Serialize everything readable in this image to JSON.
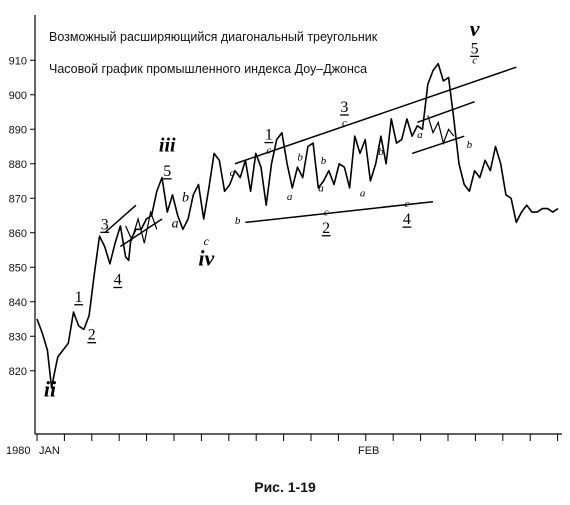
{
  "chart_data": {
    "type": "line",
    "title": "Возможный расширяющийся диагональный треугольник",
    "subtitle": "Часовой график промышленного индекса Доу–Джонса",
    "caption": "Рис. 1-19",
    "year_label": "1980",
    "x_tick_labels": [
      "JAN",
      "FEB"
    ],
    "y_ticks": [
      820,
      830,
      840,
      850,
      860,
      870,
      880,
      890,
      900,
      910
    ],
    "ylim": [
      808,
      915
    ],
    "xlim": [
      0,
      100
    ],
    "grid": false,
    "series": [
      {
        "x": [
          0,
          1,
          2,
          2.8,
          3.3,
          4,
          5,
          6,
          7,
          8,
          9,
          10,
          11,
          12,
          13,
          14,
          15,
          16,
          17,
          17.6,
          18,
          19,
          20,
          21,
          22,
          23,
          24,
          25,
          26,
          27,
          28,
          29,
          30,
          31,
          32,
          33,
          34,
          35,
          36,
          37,
          38,
          39,
          40,
          41,
          42,
          43,
          44,
          45,
          46,
          47,
          48,
          49,
          50,
          51,
          52,
          53,
          54,
          55,
          56,
          57,
          58,
          59,
          60,
          61,
          62,
          63,
          64,
          65,
          66,
          67,
          68,
          69,
          70,
          71,
          72,
          73,
          74,
          75,
          76,
          77,
          78,
          79,
          80,
          81,
          82,
          83,
          84,
          85,
          86,
          87,
          88,
          89,
          90,
          91,
          92,
          93,
          94,
          95,
          96,
          97,
          98,
          99,
          100
        ],
        "values": [
          835,
          831,
          826,
          815,
          819,
          824,
          826,
          828,
          837,
          833,
          832,
          836,
          848,
          859,
          856,
          851,
          857,
          862,
          853,
          852,
          858,
          861,
          861,
          864,
          865,
          872,
          876,
          866,
          871,
          865,
          861,
          864,
          871,
          874,
          864,
          873,
          883,
          881,
          872,
          874,
          878,
          876,
          881,
          872,
          883,
          879,
          868,
          880,
          887,
          889,
          880,
          873,
          879,
          876,
          885,
          886,
          873,
          875,
          878,
          874,
          880,
          879,
          873,
          888,
          883,
          887,
          875,
          880,
          888,
          880,
          893,
          886,
          887,
          893,
          888,
          891,
          890,
          903,
          907,
          909,
          904,
          905,
          893,
          880,
          874,
          872,
          878,
          876,
          881,
          878,
          885,
          880,
          871,
          870,
          863,
          866,
          868,
          866,
          866,
          867,
          867,
          866,
          867
        ],
        "color": "#000000"
      }
    ],
    "trendlines": [
      {
        "x1": 13,
        "y1": 860,
        "x2": 19,
        "y2": 868
      },
      {
        "x1": 16,
        "y1": 856,
        "x2": 24,
        "y2": 864
      },
      {
        "x1": 38,
        "y1": 880,
        "x2": 92,
        "y2": 908
      },
      {
        "x1": 40,
        "y1": 863,
        "x2": 76,
        "y2": 869
      },
      {
        "x1": 73,
        "y1": 892,
        "x2": 84,
        "y2": 898
      },
      {
        "x1": 72,
        "y1": 883,
        "x2": 82,
        "y2": 888
      }
    ],
    "zigzags": [
      {
        "x": [
          17,
          18.2,
          19.4,
          20.6,
          21.8,
          23
        ],
        "y": [
          862,
          858,
          864,
          857,
          866,
          861
        ]
      },
      {
        "x": [
          75,
          76,
          77,
          78,
          79,
          80
        ],
        "y": [
          894,
          889,
          892,
          886,
          890,
          888
        ]
      }
    ],
    "wave_labels": [
      {
        "text": "ii",
        "x": 2.5,
        "y": 812.5,
        "size": 22,
        "bold": true,
        "italic": true
      },
      {
        "text": "1",
        "x": 8,
        "y": 840,
        "size": 16,
        "underline": true
      },
      {
        "text": "2",
        "x": 10.5,
        "y": 829,
        "size": 16,
        "underline": true
      },
      {
        "text": "3",
        "x": 13,
        "y": 861,
        "size": 16,
        "underline": true
      },
      {
        "text": "4",
        "x": 15.5,
        "y": 845,
        "size": 16,
        "underline": true
      },
      {
        "text": "iii",
        "x": 25,
        "y": 883.5,
        "size": 20,
        "bold": true,
        "italic": true
      },
      {
        "text": "5",
        "x": 25,
        "y": 876.5,
        "size": 16,
        "underline": true
      },
      {
        "text": "b",
        "x": 28.5,
        "y": 869,
        "size": 14,
        "italic": true
      },
      {
        "text": "a",
        "x": 26.5,
        "y": 861.5,
        "size": 14,
        "italic": true
      },
      {
        "text": "c",
        "x": 32.5,
        "y": 856.5,
        "size": 12,
        "italic": true
      },
      {
        "text": "iv",
        "x": 32.5,
        "y": 850.5,
        "size": 22,
        "bold": true,
        "italic": true
      },
      {
        "text": "a",
        "x": 37.5,
        "y": 876.5,
        "size": 11,
        "italic": true
      },
      {
        "text": "b",
        "x": 38.5,
        "y": 862.5,
        "size": 11,
        "italic": true
      },
      {
        "text": "1",
        "x": 44.5,
        "y": 887,
        "size": 16,
        "underline": true
      },
      {
        "text": "c",
        "x": 44.5,
        "y": 883,
        "size": 11,
        "italic": true
      },
      {
        "text": "b",
        "x": 50.5,
        "y": 881,
        "size": 11,
        "italic": true
      },
      {
        "text": "a",
        "x": 48.5,
        "y": 869.5,
        "size": 11,
        "italic": true
      },
      {
        "text": "b",
        "x": 55,
        "y": 880,
        "size": 11,
        "italic": true
      },
      {
        "text": "a",
        "x": 54.5,
        "y": 872,
        "size": 11,
        "italic": true
      },
      {
        "text": "c",
        "x": 55.5,
        "y": 865,
        "size": 11,
        "italic": true
      },
      {
        "text": "2",
        "x": 55.5,
        "y": 860,
        "size": 16,
        "underline": true
      },
      {
        "text": "3",
        "x": 59,
        "y": 895,
        "size": 16,
        "underline": true
      },
      {
        "text": "c",
        "x": 59,
        "y": 891,
        "size": 11,
        "italic": true
      },
      {
        "text": "a",
        "x": 62.5,
        "y": 870.5,
        "size": 11,
        "italic": true
      },
      {
        "text": "b",
        "x": 66,
        "y": 882.5,
        "size": 11,
        "italic": true
      },
      {
        "text": "c",
        "x": 71,
        "y": 867.5,
        "size": 11,
        "italic": true
      },
      {
        "text": "4",
        "x": 71,
        "y": 862.5,
        "size": 16,
        "underline": true
      },
      {
        "text": "a",
        "x": 73.5,
        "y": 887.5,
        "size": 11,
        "italic": true
      },
      {
        "text": "b",
        "x": 83,
        "y": 884.5,
        "size": 11,
        "italic": true
      },
      {
        "text": "v",
        "x": 84,
        "y": 917,
        "size": 22,
        "bold": true,
        "italic": true
      },
      {
        "text": "5",
        "x": 84,
        "y": 912,
        "size": 16,
        "underline": true
      },
      {
        "text": "c",
        "x": 84,
        "y": 909,
        "size": 11,
        "italic": true
      }
    ]
  }
}
